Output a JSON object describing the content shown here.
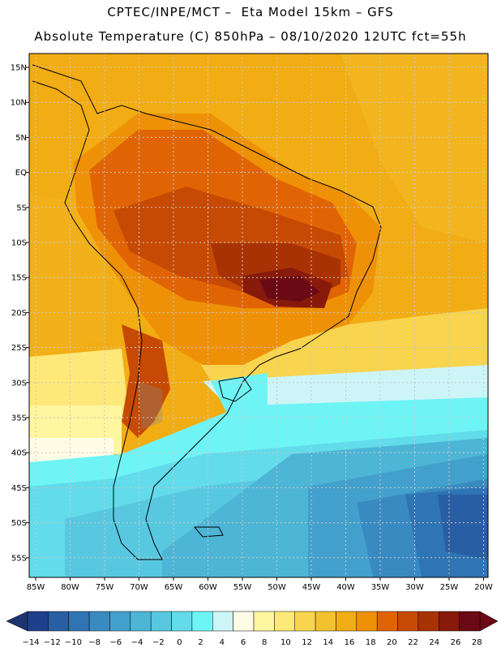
{
  "header": {
    "line1": "CPTEC/INPE/MCT –  Eta Model 15km – GFS",
    "line2": "Absolute Temperature (C) 850hPa – 08/10/2020 12UTC fct=55h"
  },
  "axes": {
    "lat_labels": [
      "15N",
      "10N",
      "5N",
      "EQ",
      "5S",
      "10S",
      "15S",
      "20S",
      "25S",
      "30S",
      "35S",
      "40S",
      "45S",
      "50S",
      "55S"
    ],
    "lon_labels": [
      "85W",
      "80W",
      "75W",
      "70W",
      "65W",
      "60W",
      "55W",
      "50W",
      "45W",
      "40W",
      "35W",
      "30W",
      "25W",
      "20W"
    ]
  },
  "colorbar": {
    "tick_labels": [
      "-14",
      "-12",
      "-10",
      "-8",
      "-6",
      "-4",
      "-2",
      "0",
      "2",
      "4",
      "6",
      "8",
      "10",
      "12",
      "14",
      "16",
      "18",
      "20",
      "22",
      "24",
      "26",
      "28"
    ],
    "colors": [
      "#1e3f8c",
      "#285ea4",
      "#2f74b4",
      "#3a8ac2",
      "#43a0cc",
      "#4db5d6",
      "#58c8e0",
      "#62dbea",
      "#6ff4f5",
      "#cdf5f7",
      "#fffce6",
      "#fff6a0",
      "#fde879",
      "#f8d44f",
      "#f2c12e",
      "#f2ad14",
      "#ee9106",
      "#e16404",
      "#c74a04",
      "#a93205",
      "#871a0b",
      "#6b0a14"
    ],
    "under_color": "#1e3370",
    "over_color": "#6b0a14"
  }
}
